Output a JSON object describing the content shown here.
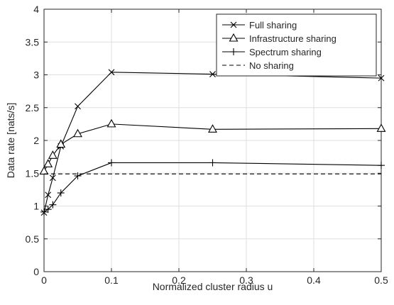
{
  "chart_data": {
    "type": "line",
    "title": "",
    "xlabel": "Normalized cluster radius u",
    "ylabel": "Data rate [nats/s]",
    "xlim": [
      0,
      0.5
    ],
    "ylim": [
      0,
      4
    ],
    "xticks": [
      0,
      0.1,
      0.2,
      0.3,
      0.4,
      0.5
    ],
    "yticks": [
      0,
      0.5,
      1,
      1.5,
      2,
      2.5,
      3,
      3.5,
      4
    ],
    "xtick_labels": [
      "0",
      "0.1",
      "0.2",
      "0.3",
      "0.4",
      "0.5"
    ],
    "ytick_labels": [
      "0",
      "0.5",
      "1",
      "1.5",
      "2",
      "2.5",
      "3",
      "3.5",
      "4"
    ],
    "grid": true,
    "legend_position": "top-right",
    "series": [
      {
        "name": "Full sharing",
        "marker": "x",
        "line": "solid",
        "color": "#000000",
        "x": [
          0,
          0.006,
          0.013,
          0.025,
          0.05,
          0.1,
          0.25,
          0.5
        ],
        "y": [
          0.9,
          1.17,
          1.43,
          1.91,
          2.52,
          3.04,
          3.01,
          2.95
        ]
      },
      {
        "name": "Infrastructure sharing",
        "marker": "triangle",
        "line": "solid",
        "color": "#000000",
        "x": [
          0,
          0.006,
          0.013,
          0.025,
          0.05,
          0.1,
          0.25,
          0.5
        ],
        "y": [
          1.53,
          1.64,
          1.77,
          1.94,
          2.1,
          2.25,
          2.17,
          2.18
        ]
      },
      {
        "name": "Spectrum sharing",
        "marker": "plus",
        "line": "solid",
        "color": "#000000",
        "x": [
          0,
          0.006,
          0.013,
          0.025,
          0.05,
          0.1,
          0.25,
          0.5
        ],
        "y": [
          0.91,
          0.95,
          1.02,
          1.2,
          1.46,
          1.66,
          1.66,
          1.62
        ]
      },
      {
        "name": "No sharing",
        "marker": "none",
        "line": "dashed",
        "color": "#000000",
        "x": [
          0,
          0.5
        ],
        "y": [
          1.49,
          1.49
        ]
      }
    ]
  }
}
